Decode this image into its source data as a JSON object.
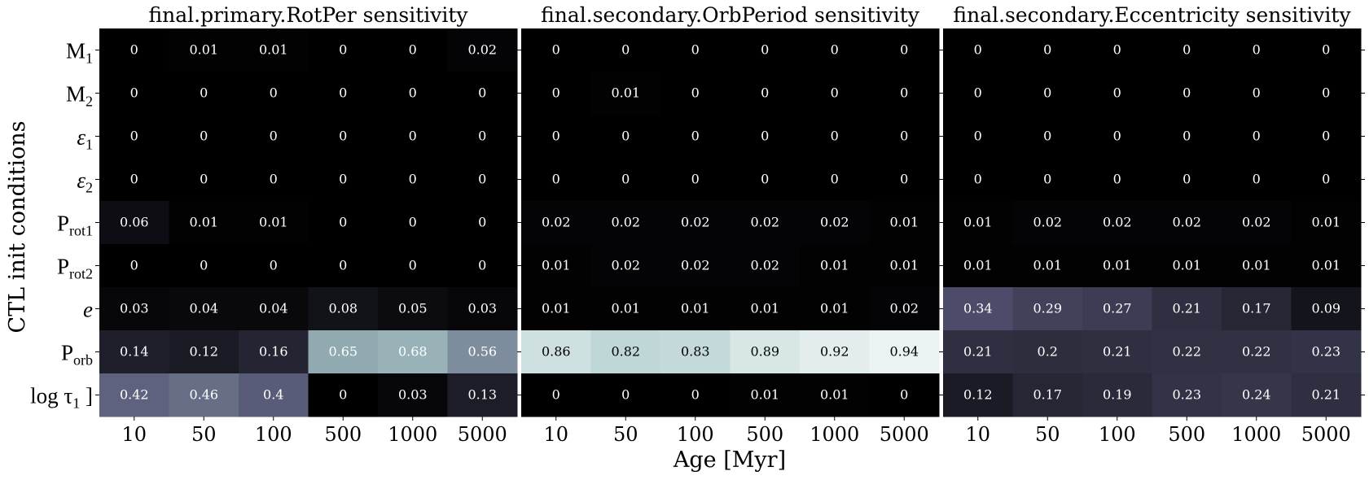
{
  "chart_data": {
    "type": "heatmap",
    "ylabel": "CTL init conditions",
    "xlabel": "Age [Myr]",
    "x_categories": [
      "10",
      "50",
      "100",
      "500",
      "1000",
      "5000"
    ],
    "y_categories": [
      {
        "base": "M",
        "sub": "1",
        "italic": false
      },
      {
        "base": "M",
        "sub": "2",
        "italic": false
      },
      {
        "base": "ε",
        "sub": "1",
        "italic": true
      },
      {
        "base": "ε",
        "sub": "2",
        "italic": true
      },
      {
        "base": "P",
        "sub": "rot1",
        "italic": false
      },
      {
        "base": "P",
        "sub": "rot2",
        "italic": false
      },
      {
        "base": "e",
        "sub": "",
        "italic": true
      },
      {
        "base": "P",
        "sub": "orb",
        "italic": false
      },
      {
        "base": "log τ",
        "sub": "1",
        "italic": false,
        "suffix": " ]"
      }
    ],
    "colormap": "bone",
    "color_range": [
      0,
      1
    ],
    "panels": [
      {
        "title": "final.primary.RotPer sensitivity",
        "values": [
          [
            0,
            0.01,
            0.01,
            0,
            0,
            0.02
          ],
          [
            0,
            0,
            0,
            0,
            0,
            0
          ],
          [
            0,
            0,
            0,
            0,
            0,
            0
          ],
          [
            0,
            0,
            0,
            0,
            0,
            0
          ],
          [
            0.06,
            0.01,
            0.01,
            0,
            0,
            0
          ],
          [
            0,
            0,
            0,
            0,
            0,
            0
          ],
          [
            0.03,
            0.04,
            0.04,
            0.08,
            0.05,
            0.03
          ],
          [
            0.14,
            0.12,
            0.16,
            0.65,
            0.68,
            0.56
          ],
          [
            0.42,
            0.46,
            0.4,
            0,
            0.03,
            0.13
          ]
        ]
      },
      {
        "title": "final.secondary.OrbPeriod sensitivity",
        "values": [
          [
            0,
            0,
            0,
            0,
            0,
            0
          ],
          [
            0,
            0.01,
            0,
            0,
            0,
            0
          ],
          [
            0,
            0,
            0,
            0,
            0,
            0
          ],
          [
            0,
            0,
            0,
            0,
            0,
            0
          ],
          [
            0.02,
            0.02,
            0.02,
            0.02,
            0.02,
            0.01
          ],
          [
            0.01,
            0.02,
            0.02,
            0.02,
            0.01,
            0.01
          ],
          [
            0.01,
            0.01,
            0.01,
            0.01,
            0.01,
            0.02
          ],
          [
            0.86,
            0.82,
            0.83,
            0.89,
            0.92,
            0.94
          ],
          [
            0,
            0,
            0,
            0.01,
            0.01,
            0
          ]
        ]
      },
      {
        "title": "final.secondary.Eccentricity sensitivity",
        "values": [
          [
            0,
            0,
            0,
            0,
            0,
            0
          ],
          [
            0,
            0,
            0,
            0,
            0,
            0
          ],
          [
            0,
            0,
            0,
            0,
            0,
            0
          ],
          [
            0,
            0,
            0,
            0,
            0,
            0
          ],
          [
            0.01,
            0.02,
            0.02,
            0.02,
            0.02,
            0.01
          ],
          [
            0.01,
            0.01,
            0.01,
            0.01,
            0.01,
            0.01
          ],
          [
            0.34,
            0.29,
            0.27,
            0.21,
            0.17,
            0.09
          ],
          [
            0.21,
            0.2,
            0.21,
            0.22,
            0.22,
            0.23
          ],
          [
            0.12,
            0.17,
            0.19,
            0.23,
            0.24,
            0.21
          ]
        ]
      }
    ]
  }
}
